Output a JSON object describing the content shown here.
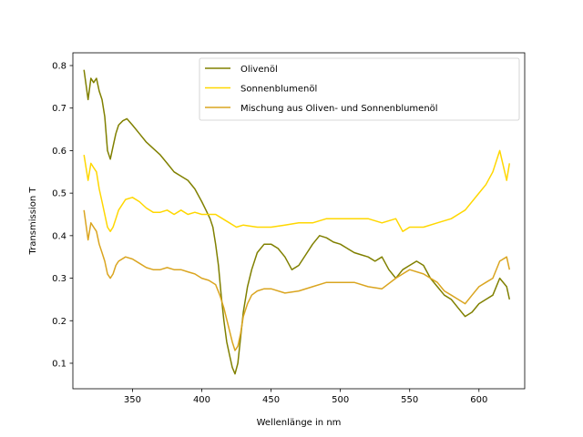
{
  "chart_data": {
    "type": "line",
    "title": "",
    "xlabel": "Wellenlänge in nm",
    "ylabel": "Transmission T",
    "xlim": [
      307,
      633
    ],
    "ylim": [
      0.04,
      0.83
    ],
    "xticks": [
      350,
      400,
      450,
      500,
      550,
      600
    ],
    "yticks": [
      0.1,
      0.2,
      0.3,
      0.4,
      0.5,
      0.6,
      0.7,
      0.8
    ],
    "ytick_labels": [
      "0.1",
      "0.2",
      "0.3",
      "0.4",
      "0.5",
      "0.6",
      "0.7",
      "0.8"
    ],
    "grid": false,
    "legend_position": "top-right",
    "series": [
      {
        "name": "Olivenöl",
        "color": "#808000",
        "x": [
          315,
          318,
          320,
          322,
          324,
          326,
          328,
          330,
          332,
          334,
          336,
          338,
          340,
          343,
          346,
          350,
          355,
          360,
          365,
          370,
          375,
          380,
          385,
          390,
          395,
          400,
          403,
          406,
          408,
          410,
          412,
          414,
          416,
          418,
          420,
          422,
          424,
          426,
          428,
          430,
          433,
          436,
          440,
          445,
          450,
          455,
          460,
          465,
          470,
          475,
          480,
          485,
          490,
          495,
          500,
          505,
          510,
          515,
          520,
          525,
          530,
          535,
          540,
          545,
          550,
          555,
          560,
          565,
          570,
          575,
          580,
          585,
          590,
          595,
          600,
          605,
          610,
          615,
          620,
          622
        ],
        "y": [
          0.79,
          0.72,
          0.77,
          0.76,
          0.77,
          0.74,
          0.72,
          0.68,
          0.6,
          0.58,
          0.61,
          0.64,
          0.66,
          0.67,
          0.675,
          0.66,
          0.64,
          0.62,
          0.605,
          0.59,
          0.57,
          0.55,
          0.54,
          0.53,
          0.51,
          0.48,
          0.46,
          0.44,
          0.42,
          0.38,
          0.33,
          0.26,
          0.2,
          0.15,
          0.12,
          0.09,
          0.075,
          0.1,
          0.16,
          0.22,
          0.28,
          0.32,
          0.36,
          0.38,
          0.38,
          0.37,
          0.35,
          0.32,
          0.33,
          0.355,
          0.38,
          0.4,
          0.395,
          0.385,
          0.38,
          0.37,
          0.36,
          0.355,
          0.35,
          0.34,
          0.35,
          0.32,
          0.3,
          0.32,
          0.33,
          0.34,
          0.33,
          0.3,
          0.28,
          0.26,
          0.25,
          0.23,
          0.21,
          0.22,
          0.24,
          0.25,
          0.26,
          0.3,
          0.28,
          0.25
        ]
      },
      {
        "name": "Sonnenblumenöl",
        "color": "#FFD700",
        "x": [
          315,
          318,
          320,
          322,
          324,
          326,
          328,
          330,
          332,
          334,
          336,
          338,
          340,
          345,
          350,
          355,
          360,
          365,
          370,
          375,
          380,
          385,
          390,
          395,
          400,
          405,
          410,
          415,
          420,
          425,
          430,
          440,
          450,
          460,
          470,
          480,
          490,
          500,
          510,
          520,
          530,
          540,
          545,
          550,
          560,
          570,
          580,
          590,
          600,
          605,
          610,
          615,
          620,
          622
        ],
        "y": [
          0.59,
          0.53,
          0.57,
          0.56,
          0.55,
          0.51,
          0.48,
          0.45,
          0.42,
          0.41,
          0.42,
          0.44,
          0.46,
          0.485,
          0.49,
          0.48,
          0.465,
          0.455,
          0.455,
          0.46,
          0.45,
          0.46,
          0.45,
          0.455,
          0.45,
          0.45,
          0.45,
          0.44,
          0.43,
          0.42,
          0.425,
          0.42,
          0.42,
          0.425,
          0.43,
          0.43,
          0.44,
          0.44,
          0.44,
          0.44,
          0.43,
          0.44,
          0.41,
          0.42,
          0.42,
          0.43,
          0.44,
          0.46,
          0.5,
          0.52,
          0.55,
          0.6,
          0.53,
          0.57
        ]
      },
      {
        "name": "Mischung aus Oliven- und Sonnenblumenöl",
        "color": "#DAA520",
        "x": [
          315,
          318,
          320,
          322,
          324,
          326,
          328,
          330,
          332,
          334,
          336,
          338,
          340,
          345,
          350,
          355,
          360,
          365,
          370,
          375,
          380,
          385,
          390,
          395,
          400,
          405,
          410,
          413,
          416,
          419,
          422,
          424,
          426,
          428,
          430,
          433,
          436,
          440,
          445,
          450,
          460,
          470,
          480,
          490,
          500,
          510,
          520,
          530,
          540,
          545,
          550,
          560,
          570,
          575,
          580,
          585,
          590,
          595,
          600,
          605,
          610,
          615,
          620,
          622
        ],
        "y": [
          0.46,
          0.39,
          0.43,
          0.42,
          0.41,
          0.38,
          0.36,
          0.34,
          0.31,
          0.3,
          0.31,
          0.33,
          0.34,
          0.35,
          0.345,
          0.335,
          0.325,
          0.32,
          0.32,
          0.325,
          0.32,
          0.32,
          0.315,
          0.31,
          0.3,
          0.295,
          0.285,
          0.26,
          0.23,
          0.19,
          0.15,
          0.13,
          0.14,
          0.17,
          0.21,
          0.24,
          0.26,
          0.27,
          0.275,
          0.275,
          0.265,
          0.27,
          0.28,
          0.29,
          0.29,
          0.29,
          0.28,
          0.275,
          0.3,
          0.31,
          0.32,
          0.31,
          0.29,
          0.27,
          0.26,
          0.25,
          0.24,
          0.26,
          0.28,
          0.29,
          0.3,
          0.34,
          0.35,
          0.32
        ]
      }
    ]
  }
}
